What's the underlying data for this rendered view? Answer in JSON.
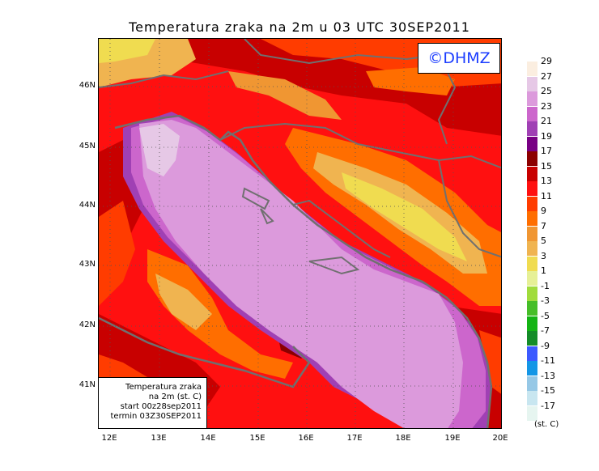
{
  "title": "Temperatura zraka na 2m u 03 UTC 30SEP2011",
  "logo": "©DHMZ",
  "info_box": {
    "line1": "Temperatura zraka",
    "line2": "na 2m (st. C)",
    "line3": "start 00z28sep2011",
    "line4": "termin 03Z30SEP2011"
  },
  "lat_labels": [
    "46N",
    "45N",
    "44N",
    "43N",
    "42N",
    "41N"
  ],
  "lon_labels": [
    "12E",
    "13E",
    "14E",
    "15E",
    "16E",
    "17E",
    "18E",
    "19E",
    "20E"
  ],
  "colorbar": {
    "labels": [
      "29",
      "27",
      "25",
      "23",
      "21",
      "19",
      "17",
      "15",
      "13",
      "11",
      "9",
      "7",
      "5",
      "3",
      "1",
      "-1",
      "-3",
      "-5",
      "-7",
      "-9",
      "-11",
      "-13",
      "-15",
      "-17"
    ],
    "colors": [
      "#fbeee0",
      "#e6c8e6",
      "#dc9adc",
      "#cc66cc",
      "#a040b4",
      "#780084",
      "#8c0000",
      "#c80000",
      "#ff1010",
      "#ff3c00",
      "#ff6e00",
      "#f09632",
      "#f0b450",
      "#f0dc50",
      "#e6f096",
      "#a0dc3c",
      "#46be28",
      "#14b414",
      "#148c28",
      "#3c5aff",
      "#1496e6",
      "#96c8e6",
      "#c8e6f0",
      "#e6f5f0"
    ]
  },
  "unit_label": "(st. C)",
  "colors": {
    "sea": "#d49ad6",
    "coastal_warm": "#a040b4",
    "land_hot": "#ff1010",
    "land_mild": "#f0b450",
    "borders": "#707070"
  }
}
